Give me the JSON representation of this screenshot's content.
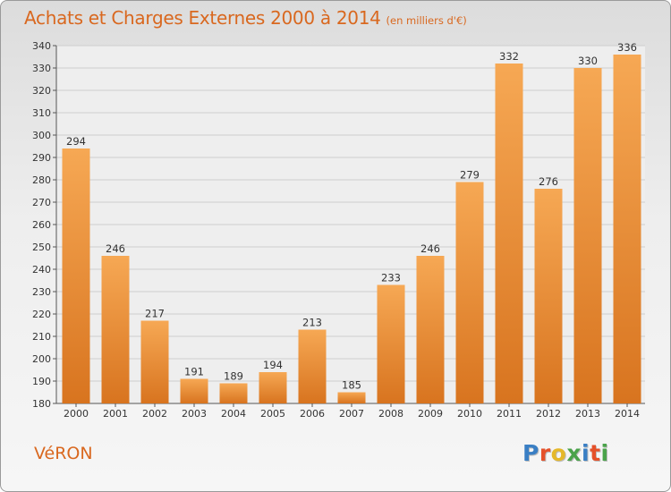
{
  "header": {
    "title": "Achats et Charges Externes 2000 à 2014",
    "subtitle": "(en milliers d'€)"
  },
  "footer": {
    "commune": "VéRON",
    "logo_text": "Proxiti",
    "logo_colors": [
      "#3a7fc4",
      "#e5512a",
      "#e5b82a",
      "#4aa34a",
      "#3a7fc4",
      "#e5512a",
      "#4aa34a"
    ]
  },
  "colors": {
    "title": "#d9681f",
    "bar_light": "#f6a854",
    "bar_dark": "#d8741f",
    "plot_background": "#eeeeee",
    "grid": "#cfcfcf"
  },
  "chart_data": {
    "type": "bar",
    "categories": [
      "2000",
      "2001",
      "2002",
      "2003",
      "2004",
      "2005",
      "2006",
      "2007",
      "2008",
      "2009",
      "2010",
      "2011",
      "2012",
      "2013",
      "2014"
    ],
    "values": [
      294,
      246,
      217,
      191,
      189,
      194,
      213,
      185,
      233,
      246,
      279,
      332,
      276,
      330,
      336
    ],
    "ylim": [
      180,
      340
    ],
    "yticks": [
      180,
      190,
      200,
      210,
      220,
      230,
      240,
      250,
      260,
      270,
      280,
      290,
      300,
      310,
      320,
      330,
      340
    ],
    "grid": true,
    "data_labels": true,
    "title": "Achats et Charges Externes 2000 à 2014",
    "xlabel": "",
    "ylabel": ""
  }
}
